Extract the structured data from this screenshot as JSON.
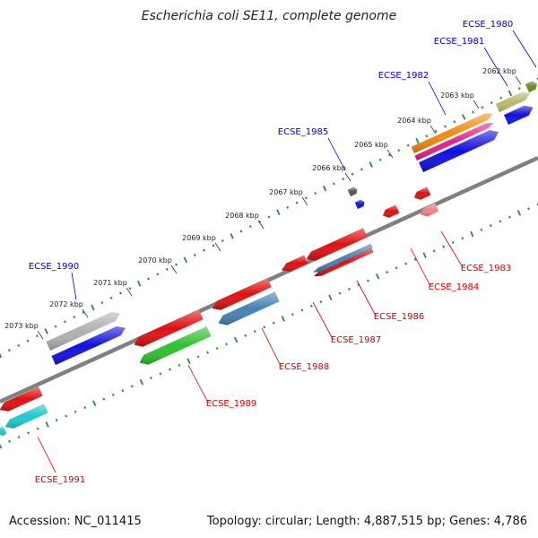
{
  "title": "Escherichia coli SE11, complete genome",
  "footer": {
    "accession": "Accession: NC_011415",
    "summary": "Topology: circular; Length: 4,887,515 bp; Genes: 4,786"
  },
  "colors": {
    "backbone": "#808080",
    "ticks": "#2e8b2e",
    "label_forward": "#0000cc",
    "label_reverse": "#cc0000"
  },
  "ticks": [
    {
      "label": "2062 kbp"
    },
    {
      "label": "2063 kbp"
    },
    {
      "label": "2064 kbp"
    },
    {
      "label": "2065 kbp"
    },
    {
      "label": "2066 kbp"
    },
    {
      "label": "2067 kbp"
    },
    {
      "label": "2068 kbp"
    },
    {
      "label": "2069 kbp"
    },
    {
      "label": "2070 kbp"
    },
    {
      "label": "2071 kbp"
    },
    {
      "label": "2072 kbp"
    },
    {
      "label": "2073 kbp"
    }
  ],
  "genes": [
    {
      "name": "ECSE_1980",
      "strand": "forward",
      "color": "#1010e0"
    },
    {
      "name": "ECSE_1981",
      "strand": "forward",
      "color": "#b8b870"
    },
    {
      "name": "ECSE_1982",
      "strand": "forward",
      "color": "#f08a10"
    },
    {
      "name": "ECSE_1985",
      "strand": "forward",
      "color": "#555555"
    },
    {
      "name": "ECSE_1990",
      "strand": "forward",
      "color": "#b0b0b0"
    },
    {
      "name": "ECSE_1983",
      "strand": "reverse",
      "color": "#f08080"
    },
    {
      "name": "ECSE_1984",
      "strand": "reverse",
      "color": "#e01010"
    },
    {
      "name": "ECSE_1986",
      "strand": "reverse",
      "color": "#e01010"
    },
    {
      "name": "ECSE_1987",
      "strand": "reverse",
      "color": "#e01010"
    },
    {
      "name": "ECSE_1988",
      "strand": "reverse",
      "color": "#4682b4"
    },
    {
      "name": "ECSE_1989",
      "strand": "reverse",
      "color": "#30c030"
    },
    {
      "name": "ECSE_1991",
      "strand": "reverse",
      "color": "#20c8d0"
    }
  ],
  "unlabeled_features": [
    {
      "color": "#6b8e23"
    },
    {
      "color": "#e81e8c"
    },
    {
      "color": "#1010e0"
    },
    {
      "color": "#1010e0"
    },
    {
      "color": "#1010e0"
    },
    {
      "color": "#e01010"
    },
    {
      "color": "#e01010"
    },
    {
      "color": "#e01010"
    },
    {
      "color": "#e01010"
    },
    {
      "color": "#1010e0"
    }
  ]
}
